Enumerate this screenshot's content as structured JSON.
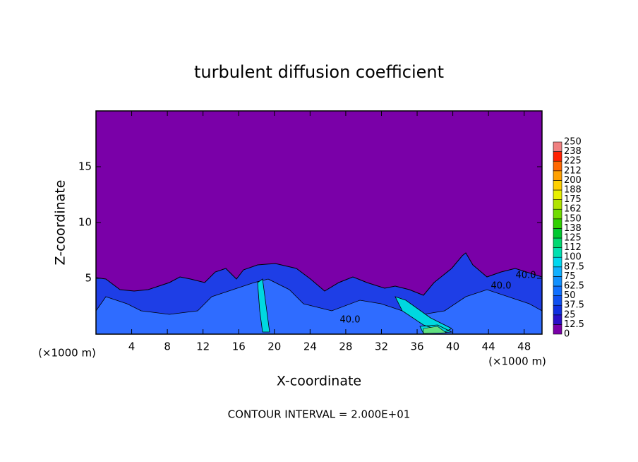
{
  "chart_data": {
    "type": "contour",
    "title": "turbulent diffusion coefficient",
    "xlabel": "X-coordinate",
    "ylabel": "Z-coordinate",
    "xunit": "(×1000 m)",
    "yunit": "(×1000 m)",
    "footnote": "CONTOUR INTERVAL = 2.000E+01",
    "xlim": [
      0,
      50
    ],
    "ylim": [
      0,
      20
    ],
    "xticks": [
      4,
      8,
      12,
      16,
      20,
      24,
      28,
      32,
      36,
      40,
      44,
      48
    ],
    "yticks": [
      5,
      10,
      15
    ],
    "contour_labels": [
      "40.0",
      "40.0",
      "40.0"
    ],
    "colorbar_levels": [
      0,
      12.5,
      25,
      37.5,
      50,
      62.5,
      75,
      87.5,
      100,
      112,
      125,
      138,
      150,
      162,
      175,
      188,
      200,
      212,
      225,
      238,
      250
    ],
    "colorbar_colors": [
      "#7a00a8",
      "#2a10c8",
      "#1030e0",
      "#1050f0",
      "#1070ff",
      "#1090ff",
      "#10b0ff",
      "#00d8f0",
      "#00e0b0",
      "#00d870",
      "#00c830",
      "#30d000",
      "#70dc00",
      "#b0e400",
      "#e8f000",
      "#ffd000",
      "#ffa000",
      "#ff6800",
      "#ff2000",
      "#f08080"
    ]
  }
}
